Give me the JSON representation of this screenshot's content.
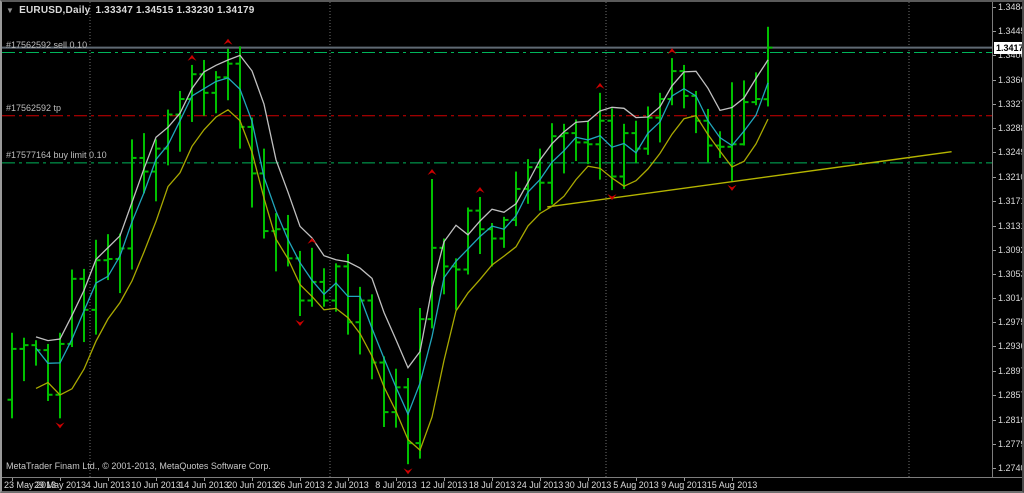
{
  "window": {
    "symbol_label": "EURUSD,Daily",
    "ohlc_label": "1.33347 1.34515 1.33230 1.34179",
    "collapse_icon": "down-triangle",
    "copyright": "MetaTrader Finam Ltd., © 2001-2013, MetaQuotes Software Corp."
  },
  "orders": [
    {
      "label": "#17562592 sell 0.10",
      "type": "sell",
      "price": 1.341
    },
    {
      "label": "#17562592 tp",
      "type": "take-profit",
      "price": 1.3308
    },
    {
      "label": "#17577164 buy limit 0.10",
      "type": "buy-limit",
      "price": 1.3232
    }
  ],
  "bid": {
    "price": 1.34179,
    "tag": "1.34179"
  },
  "price_axis": {
    "labels": [
      "1.34840",
      "1.34450",
      "1.34060",
      "1.33660",
      "1.33270",
      "1.32880",
      "1.32490",
      "1.32100",
      "1.31710",
      "1.31310",
      "1.30920",
      "1.30530",
      "1.30140",
      "1.29750",
      "1.29360",
      "1.28970",
      "1.28570",
      "1.28180",
      "1.27790",
      "1.27400"
    ]
  },
  "time_axis": {
    "labels": [
      {
        "text": "23 May 2013",
        "bar": 0
      },
      {
        "text": "29 May 2013",
        "bar": 4
      },
      {
        "text": "4 Jun 2013",
        "bar": 8
      },
      {
        "text": "10 Jun 2013",
        "bar": 12
      },
      {
        "text": "14 Jun 2013",
        "bar": 16
      },
      {
        "text": "20 Jun 2013",
        "bar": 20
      },
      {
        "text": "26 Jun 2013",
        "bar": 24
      },
      {
        "text": "2 Jul 2013",
        "bar": 28
      },
      {
        "text": "8 Jul 2013",
        "bar": 32
      },
      {
        "text": "12 Jul 2013",
        "bar": 36
      },
      {
        "text": "18 Jul 2013",
        "bar": 40
      },
      {
        "text": "24 Jul 2013",
        "bar": 44
      },
      {
        "text": "30 Jul 2013",
        "bar": 48
      },
      {
        "text": "5 Aug 2013",
        "bar": 52
      },
      {
        "text": "9 Aug 2013",
        "bar": 56
      },
      {
        "text": "15 Aug 2013",
        "bar": 60
      }
    ]
  },
  "colors": {
    "background": "#000000",
    "bar": "#00C000",
    "ma_high": "#C0C0C0",
    "ma_close": "#21A6BC",
    "ma_low": "#A9A900",
    "trendline": "#B5B500",
    "order_green": "#00B45A",
    "order_red": "#D00000",
    "bid_line": "#5F6A74",
    "fractal": "#CC0000",
    "separator": "#707070",
    "axis_text": "#DADADA"
  },
  "chart_data": {
    "type": "ohlc-bar",
    "title": "EURUSD Daily",
    "ylim": [
      1.274,
      1.3484
    ],
    "grid": false,
    "bars": [
      {
        "d": "23 May",
        "o": 1.285,
        "h": 1.2958,
        "l": 1.282,
        "c": 1.2932
      },
      {
        "d": "24 May",
        "o": 1.2932,
        "h": 1.295,
        "l": 1.288,
        "c": 1.2938
      },
      {
        "d": "27 May",
        "o": 1.2938,
        "h": 1.2946,
        "l": 1.2905,
        "c": 1.293
      },
      {
        "d": "28 May",
        "o": 1.293,
        "h": 1.294,
        "l": 1.2848,
        "c": 1.2858
      },
      {
        "d": "29 May",
        "o": 1.2858,
        "h": 1.2958,
        "l": 1.282,
        "c": 1.294
      },
      {
        "d": "30 May",
        "o": 1.294,
        "h": 1.306,
        "l": 1.2935,
        "c": 1.3045
      },
      {
        "d": "31 May",
        "o": 1.3045,
        "h": 1.3061,
        "l": 1.2943,
        "c": 1.2995
      },
      {
        "d": "3 Jun",
        "o": 1.2995,
        "h": 1.3108,
        "l": 1.2955,
        "c": 1.3075
      },
      {
        "d": "4 Jun",
        "o": 1.3075,
        "h": 1.3117,
        "l": 1.3043,
        "c": 1.3077
      },
      {
        "d": "5 Jun",
        "o": 1.3077,
        "h": 1.3118,
        "l": 1.3022,
        "c": 1.3094
      },
      {
        "d": "6 Jun",
        "o": 1.3094,
        "h": 1.327,
        "l": 1.306,
        "c": 1.324
      },
      {
        "d": "7 Jun",
        "o": 1.324,
        "h": 1.328,
        "l": 1.3183,
        "c": 1.3218
      },
      {
        "d": "10 Jun",
        "o": 1.3218,
        "h": 1.327,
        "l": 1.317,
        "c": 1.3255
      },
      {
        "d": "11 Jun",
        "o": 1.3255,
        "h": 1.3318,
        "l": 1.3228,
        "c": 1.331
      },
      {
        "d": "12 Jun",
        "o": 1.331,
        "h": 1.3348,
        "l": 1.325,
        "c": 1.3335
      },
      {
        "d": "13 Jun",
        "o": 1.3335,
        "h": 1.339,
        "l": 1.3298,
        "c": 1.3375
      },
      {
        "d": "14 Jun",
        "o": 1.3375,
        "h": 1.3398,
        "l": 1.3308,
        "c": 1.3345
      },
      {
        "d": "17 Jun",
        "o": 1.3345,
        "h": 1.338,
        "l": 1.3312,
        "c": 1.337
      },
      {
        "d": "18 Jun",
        "o": 1.337,
        "h": 1.3416,
        "l": 1.3333,
        "c": 1.3392
      },
      {
        "d": "19 Jun",
        "o": 1.3392,
        "h": 1.342,
        "l": 1.3255,
        "c": 1.329
      },
      {
        "d": "20 Jun",
        "o": 1.329,
        "h": 1.3305,
        "l": 1.316,
        "c": 1.3215
      },
      {
        "d": "21 Jun",
        "o": 1.3215,
        "h": 1.3255,
        "l": 1.311,
        "c": 1.3122
      },
      {
        "d": "24 Jun",
        "o": 1.3122,
        "h": 1.3151,
        "l": 1.3057,
        "c": 1.3125
      },
      {
        "d": "25 Jun",
        "o": 1.3125,
        "h": 1.3148,
        "l": 1.3065,
        "c": 1.3078
      },
      {
        "d": "26 Jun",
        "o": 1.3078,
        "h": 1.309,
        "l": 1.2985,
        "c": 1.301
      },
      {
        "d": "27 Jun",
        "o": 1.301,
        "h": 1.3095,
        "l": 1.3,
        "c": 1.304
      },
      {
        "d": "28 Jun",
        "o": 1.304,
        "h": 1.3062,
        "l": 1.3,
        "c": 1.301
      },
      {
        "d": "1 Jul",
        "o": 1.301,
        "h": 1.307,
        "l": 1.2992,
        "c": 1.3065
      },
      {
        "d": "2 Jul",
        "o": 1.3065,
        "h": 1.3085,
        "l": 1.2955,
        "c": 1.2975
      },
      {
        "d": "3 Jul",
        "o": 1.2975,
        "h": 1.3032,
        "l": 1.2923,
        "c": 1.301
      },
      {
        "d": "4 Jul",
        "o": 1.301,
        "h": 1.302,
        "l": 1.2883,
        "c": 1.291
      },
      {
        "d": "5 Jul",
        "o": 1.291,
        "h": 1.292,
        "l": 1.2806,
        "c": 1.283
      },
      {
        "d": "8 Jul",
        "o": 1.283,
        "h": 1.29,
        "l": 1.2805,
        "c": 1.287
      },
      {
        "d": "9 Jul",
        "o": 1.287,
        "h": 1.2885,
        "l": 1.2746,
        "c": 1.278
      },
      {
        "d": "10 Jul",
        "o": 1.278,
        "h": 1.2998,
        "l": 1.2755,
        "c": 1.298
      },
      {
        "d": "11 Jul",
        "o": 1.298,
        "h": 1.3206,
        "l": 1.2965,
        "c": 1.3095
      },
      {
        "d": "12 Jul",
        "o": 1.3095,
        "h": 1.311,
        "l": 1.302,
        "c": 1.3065
      },
      {
        "d": "15 Jul",
        "o": 1.3065,
        "h": 1.3078,
        "l": 1.2995,
        "c": 1.306
      },
      {
        "d": "16 Jul",
        "o": 1.306,
        "h": 1.316,
        "l": 1.3052,
        "c": 1.3155
      },
      {
        "d": "17 Jul",
        "o": 1.3155,
        "h": 1.3177,
        "l": 1.3085,
        "c": 1.3125
      },
      {
        "d": "18 Jul",
        "o": 1.3125,
        "h": 1.3135,
        "l": 1.3065,
        "c": 1.311
      },
      {
        "d": "19 Jul",
        "o": 1.311,
        "h": 1.3145,
        "l": 1.3095,
        "c": 1.314
      },
      {
        "d": "22 Jul",
        "o": 1.314,
        "h": 1.3218,
        "l": 1.313,
        "c": 1.319
      },
      {
        "d": "23 Jul",
        "o": 1.319,
        "h": 1.3238,
        "l": 1.3166,
        "c": 1.3225
      },
      {
        "d": "24 Jul",
        "o": 1.3225,
        "h": 1.3255,
        "l": 1.3155,
        "c": 1.32
      },
      {
        "d": "25 Jul",
        "o": 1.32,
        "h": 1.3296,
        "l": 1.3165,
        "c": 1.3275
      },
      {
        "d": "26 Jul",
        "o": 1.3275,
        "h": 1.3295,
        "l": 1.3215,
        "c": 1.328
      },
      {
        "d": "29 Jul",
        "o": 1.328,
        "h": 1.3302,
        "l": 1.3235,
        "c": 1.3265
      },
      {
        "d": "30 Jul",
        "o": 1.3265,
        "h": 1.33,
        "l": 1.323,
        "c": 1.3262
      },
      {
        "d": "31 Jul",
        "o": 1.3262,
        "h": 1.3345,
        "l": 1.3205,
        "c": 1.33
      },
      {
        "d": "1 Aug",
        "o": 1.33,
        "h": 1.332,
        "l": 1.3188,
        "c": 1.321
      },
      {
        "d": "2 Aug",
        "o": 1.321,
        "h": 1.3295,
        "l": 1.319,
        "c": 1.328
      },
      {
        "d": "5 Aug",
        "o": 1.328,
        "h": 1.33,
        "l": 1.3232,
        "c": 1.3255
      },
      {
        "d": "6 Aug",
        "o": 1.3255,
        "h": 1.3323,
        "l": 1.3245,
        "c": 1.3305
      },
      {
        "d": "7 Aug",
        "o": 1.3305,
        "h": 1.3345,
        "l": 1.3265,
        "c": 1.3335
      },
      {
        "d": "8 Aug",
        "o": 1.3335,
        "h": 1.3401,
        "l": 1.3325,
        "c": 1.338
      },
      {
        "d": "9 Aug",
        "o": 1.338,
        "h": 1.339,
        "l": 1.332,
        "c": 1.334
      },
      {
        "d": "12 Aug",
        "o": 1.334,
        "h": 1.3348,
        "l": 1.328,
        "c": 1.33
      },
      {
        "d": "13 Aug",
        "o": 1.33,
        "h": 1.3319,
        "l": 1.3233,
        "c": 1.326
      },
      {
        "d": "14 Aug",
        "o": 1.326,
        "h": 1.3283,
        "l": 1.324,
        "c": 1.3258
      },
      {
        "d": "15 Aug",
        "o": 1.3258,
        "h": 1.3362,
        "l": 1.3203,
        "c": 1.3262
      },
      {
        "d": "16 Aug",
        "o": 1.3262,
        "h": 1.3365,
        "l": 1.326,
        "c": 1.333
      },
      {
        "d": "19 Aug",
        "o": 1.333,
        "h": 1.3378,
        "l": 1.3325,
        "c": 1.3335
      },
      {
        "d": "20 Aug",
        "o": 1.33347,
        "h": 1.34515,
        "l": 1.3323,
        "c": 1.34179
      }
    ],
    "fractals_up": [
      15,
      18,
      25,
      35,
      39,
      49,
      55
    ],
    "fractals_down": [
      4,
      24,
      33,
      50,
      60
    ],
    "overlays": [
      {
        "name": "ma-high",
        "type": "sma",
        "period": 3,
        "applied_to": "high"
      },
      {
        "name": "ma-close",
        "type": "sma",
        "period": 3,
        "applied_to": "close"
      },
      {
        "name": "ma-low",
        "type": "sma",
        "period": 3,
        "applied_to": "low"
      }
    ],
    "trendline": {
      "bar1": 44.6,
      "price1": 1.3161,
      "bar2": 78.3,
      "price2": 1.325
    },
    "separators": {
      "dates": [
        "1 Jun 2013",
        "1 Jul 2013",
        "1 Aug 2013",
        "1 Sep 2013"
      ],
      "bar_positions": [
        6.5,
        26.5,
        49.5,
        74.75
      ]
    }
  }
}
